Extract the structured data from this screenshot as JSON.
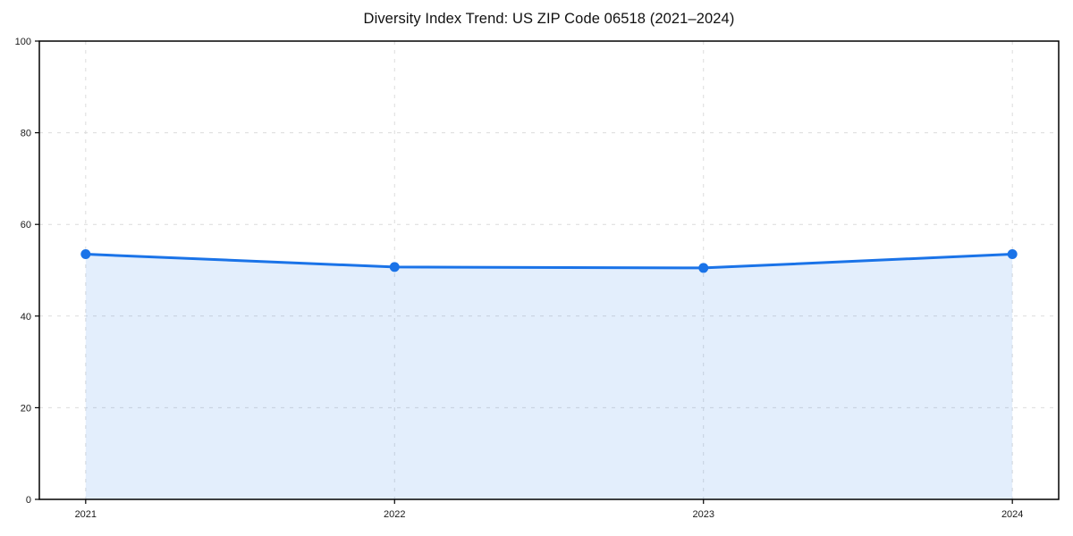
{
  "chart_data": {
    "type": "area",
    "title": "Diversity Index Trend: US ZIP Code 06518 (2021–2024)",
    "x": [
      2021,
      2022,
      2023,
      2024
    ],
    "x_tick_labels": [
      "2021",
      "2022",
      "2023",
      "2024"
    ],
    "series": [
      {
        "name": "Diversity Index",
        "values": [
          53.5,
          50.7,
          50.5,
          53.5
        ]
      }
    ],
    "xlabel": "",
    "ylabel": "",
    "ylim": [
      0,
      100
    ],
    "xlim": [
      2020.85,
      2024.15
    ],
    "yticks": [
      0,
      20,
      40,
      60,
      80,
      100
    ],
    "grid": true,
    "grid_style": "dashed",
    "legend": "none",
    "colors": {
      "line": "#1a73e8",
      "marker": "#1a73e8",
      "area_fill": "rgba(26,115,232,0.12)",
      "gridline": "#dcdcdc",
      "spine": "#000000",
      "tick_label": "#1a1a1a",
      "background": "#ffffff"
    }
  }
}
